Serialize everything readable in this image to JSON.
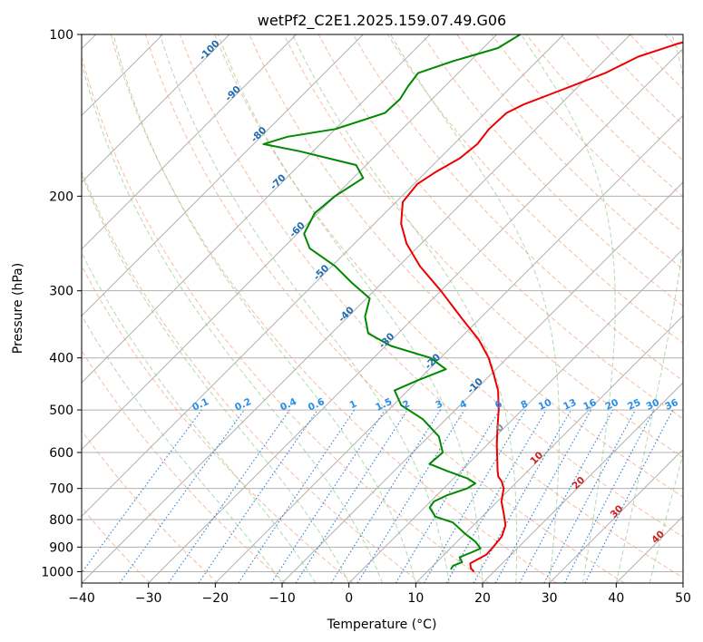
{
  "chart_data": {
    "type": "line",
    "subtype": "skew-t log-p",
    "title": "wetPf2_C2E1.2025.159.07.49.G06",
    "xlabel": "Temperature (°C)",
    "ylabel": "Pressure (hPa)",
    "xlim": [
      -40,
      50
    ],
    "ylim": [
      1050,
      100
    ],
    "yscale": "log",
    "grid": true,
    "x_ticks": [
      -40,
      -30,
      -20,
      -10,
      0,
      10,
      20,
      30,
      40,
      50
    ],
    "x_tick_labels": [
      "−40",
      "−30",
      "−20",
      "−10",
      "0",
      "10",
      "20",
      "30",
      "40",
      "50"
    ],
    "y_ticks": [
      100,
      200,
      300,
      400,
      500,
      600,
      700,
      800,
      900,
      1000
    ],
    "y_tick_labels": [
      "100",
      "200",
      "300",
      "400",
      "500",
      "600",
      "700",
      "800",
      "900",
      "1000"
    ],
    "dry_adiabat_labels": [
      {
        "text": "-100",
        "p": 108,
        "t": -100
      },
      {
        "text": "-90",
        "p": 130,
        "t": -90
      },
      {
        "text": "-80",
        "p": 155,
        "t": -80
      },
      {
        "text": "-70",
        "p": 190,
        "t": -70
      },
      {
        "text": "-60",
        "p": 233,
        "t": -60
      },
      {
        "text": "-50",
        "p": 280,
        "t": -50
      },
      {
        "text": "-40",
        "p": 335,
        "t": -40
      },
      {
        "text": "-30",
        "p": 375,
        "t": -30
      },
      {
        "text": "-20",
        "p": 410,
        "t": -20
      },
      {
        "text": "-10",
        "p": 455,
        "t": -10
      }
    ],
    "moist_adiabat_labels": [
      {
        "text": "0",
        "p": 545,
        "t": 0
      },
      {
        "text": "10",
        "p": 620,
        "t": 10
      },
      {
        "text": "20",
        "p": 690,
        "t": 20
      },
      {
        "text": "30",
        "p": 780,
        "t": 30
      },
      {
        "text": "40",
        "p": 870,
        "t": 40
      }
    ],
    "mixing_ratio_labels": [
      "0.1",
      "0.2",
      "0.4",
      "0.6",
      "1",
      "1.5",
      "2",
      "3",
      "4",
      "6",
      "8",
      "10",
      "13",
      "16",
      "20",
      "25",
      "30",
      "36"
    ],
    "series": [
      {
        "color": "#ee0000",
        "points": [
          [
            1000,
            17
          ],
          [
            985,
            16
          ],
          [
            965,
            15.2
          ],
          [
            930,
            16.3
          ],
          [
            900,
            16.2
          ],
          [
            860,
            15.9
          ],
          [
            820,
            14.8
          ],
          [
            780,
            12.8
          ],
          [
            740,
            10.6
          ],
          [
            700,
            9.0
          ],
          [
            680,
            7.7
          ],
          [
            665,
            6.4
          ],
          [
            650,
            5.5
          ],
          [
            620,
            3.8
          ],
          [
            580,
            1.4
          ],
          [
            540,
            -1.0
          ],
          [
            500,
            -3.5
          ],
          [
            460,
            -6.5
          ],
          [
            430,
            -9.5
          ],
          [
            400,
            -12.8
          ],
          [
            370,
            -17.0
          ],
          [
            340,
            -22.3
          ],
          [
            300,
            -30.0
          ],
          [
            270,
            -36.8
          ],
          [
            245,
            -42.2
          ],
          [
            225,
            -46.0
          ],
          [
            205,
            -49.0
          ],
          [
            190,
            -49.5
          ],
          [
            180,
            -48.5
          ],
          [
            170,
            -47.0
          ],
          [
            160,
            -46.5
          ],
          [
            150,
            -47.0
          ],
          [
            140,
            -46.8
          ],
          [
            135,
            -45.5
          ],
          [
            128,
            -42.5
          ],
          [
            118,
            -38.0
          ],
          [
            110,
            -35.5
          ],
          [
            104,
            -31.5
          ],
          [
            100,
            -27.5
          ]
        ]
      },
      {
        "color": "#008800",
        "points": [
          [
            990,
            13.2
          ],
          [
            975,
            13.0
          ],
          [
            960,
            13.8
          ],
          [
            940,
            12.7
          ],
          [
            920,
            13.8
          ],
          [
            905,
            14.5
          ],
          [
            880,
            12.8
          ],
          [
            850,
            10.0
          ],
          [
            810,
            6.5
          ],
          [
            790,
            3.0
          ],
          [
            760,
            0.8
          ],
          [
            740,
            0.5
          ],
          [
            720,
            1.6
          ],
          [
            700,
            3.5
          ],
          [
            685,
            4.0
          ],
          [
            670,
            2.0
          ],
          [
            650,
            -2.0
          ],
          [
            630,
            -5.8
          ],
          [
            600,
            -5.5
          ],
          [
            560,
            -8.5
          ],
          [
            520,
            -13.5
          ],
          [
            490,
            -18.8
          ],
          [
            460,
            -22.0
          ],
          [
            440,
            -20.0
          ],
          [
            420,
            -17.5
          ],
          [
            400,
            -21.5
          ],
          [
            380,
            -29.2
          ],
          [
            360,
            -34.5
          ],
          [
            335,
            -37.5
          ],
          [
            310,
            -39.5
          ],
          [
            290,
            -44.5
          ],
          [
            270,
            -49.5
          ],
          [
            250,
            -56.0
          ],
          [
            235,
            -59.0
          ],
          [
            215,
            -60.5
          ],
          [
            200,
            -60.0
          ],
          [
            185,
            -58.5
          ],
          [
            175,
            -61.5
          ],
          [
            165,
            -72.0
          ],
          [
            160,
            -78.5
          ],
          [
            155,
            -76.0
          ],
          [
            150,
            -70.0
          ],
          [
            140,
            -65.0
          ],
          [
            132,
            -64.8
          ],
          [
            125,
            -65.5
          ],
          [
            118,
            -66.0
          ],
          [
            112,
            -62.5
          ],
          [
            106,
            -57.8
          ],
          [
            100,
            -56.5
          ]
        ]
      }
    ]
  }
}
